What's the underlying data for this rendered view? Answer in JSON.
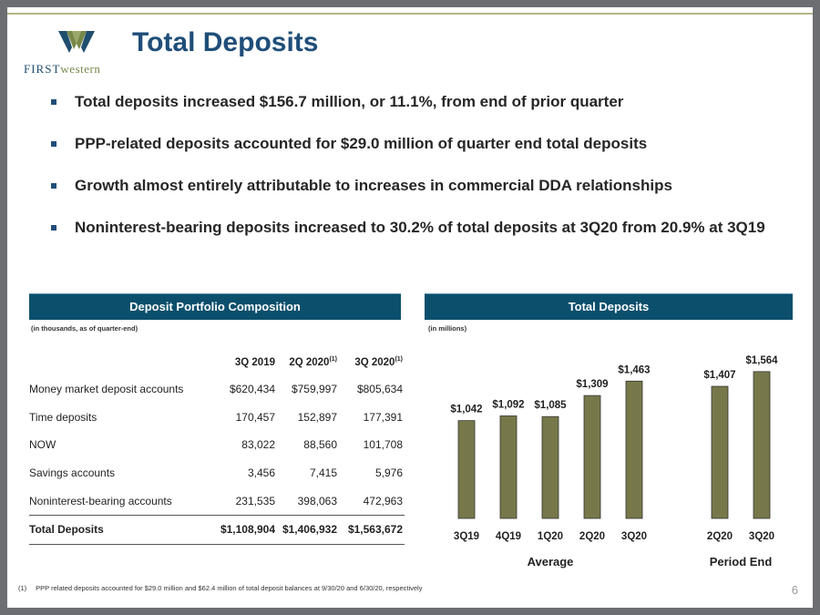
{
  "logo": {
    "text_first": "FIRST",
    "text_western": "western"
  },
  "title": "Total Deposits",
  "bullets": [
    "Total deposits increased $156.7 million, or 11.1%, from end of prior quarter",
    "PPP-related deposits accounted for $29.0 million of quarter end total deposits",
    "Growth almost entirely attributable to increases in commercial DDA relationships",
    "Noninterest-bearing deposits increased to 30.2% of total deposits at 3Q20 from 20.9% at 3Q19"
  ],
  "table_panel": {
    "header": "Deposit Portfolio Composition",
    "note": "(in thousands, as of quarter-end)",
    "columns": [
      {
        "label": "3Q 2019",
        "sup": ""
      },
      {
        "label": "2Q 2020",
        "sup": "(1)"
      },
      {
        "label": "3Q 2020",
        "sup": "(1)"
      }
    ],
    "rows": [
      {
        "label": "Money market deposit accounts",
        "values": [
          "$620,434",
          "$759,997",
          "$805,634"
        ]
      },
      {
        "label": "Time deposits",
        "values": [
          "170,457",
          "152,897",
          "177,391"
        ]
      },
      {
        "label": "NOW",
        "values": [
          "83,022",
          "88,560",
          "101,708"
        ]
      },
      {
        "label": "Savings accounts",
        "values": [
          "3,456",
          "7,415",
          "5,976"
        ]
      },
      {
        "label": "Noninterest-bearing accounts",
        "values": [
          "231,535",
          "398,063",
          "472,963"
        ]
      }
    ],
    "total": {
      "label": "Total Deposits",
      "values": [
        "$1,108,904",
        "$1,406,932",
        "$1,563,672"
      ]
    }
  },
  "chart_panel": {
    "header": "Total Deposits",
    "note": "(in millions)"
  },
  "chart_data": {
    "type": "bar",
    "categories": [
      "3Q19",
      "4Q19",
      "1Q20",
      "2Q20",
      "3Q20",
      "2Q20",
      "3Q20"
    ],
    "values": [
      1042,
      1092,
      1085,
      1309,
      1463,
      1407,
      1564
    ],
    "data_labels": [
      "$1,042",
      "$1,092",
      "$1,085",
      "$1,309",
      "$1,463",
      "$1,407",
      "$1,564"
    ],
    "groups": [
      {
        "name": "Average",
        "indices": [
          0,
          1,
          2,
          3,
          4
        ]
      },
      {
        "name": "Period End",
        "indices": [
          5,
          6
        ]
      }
    ],
    "ylim": [
      0,
      1650
    ],
    "bar_color": "#77784a",
    "grid": false
  },
  "footnote": {
    "marker": "(1)",
    "text": "PPP related deposits accounted for $29.0 million and $62.4 million of total deposit balances at 9/30/20 and 6/30/20, respectively"
  },
  "page_number": "6"
}
